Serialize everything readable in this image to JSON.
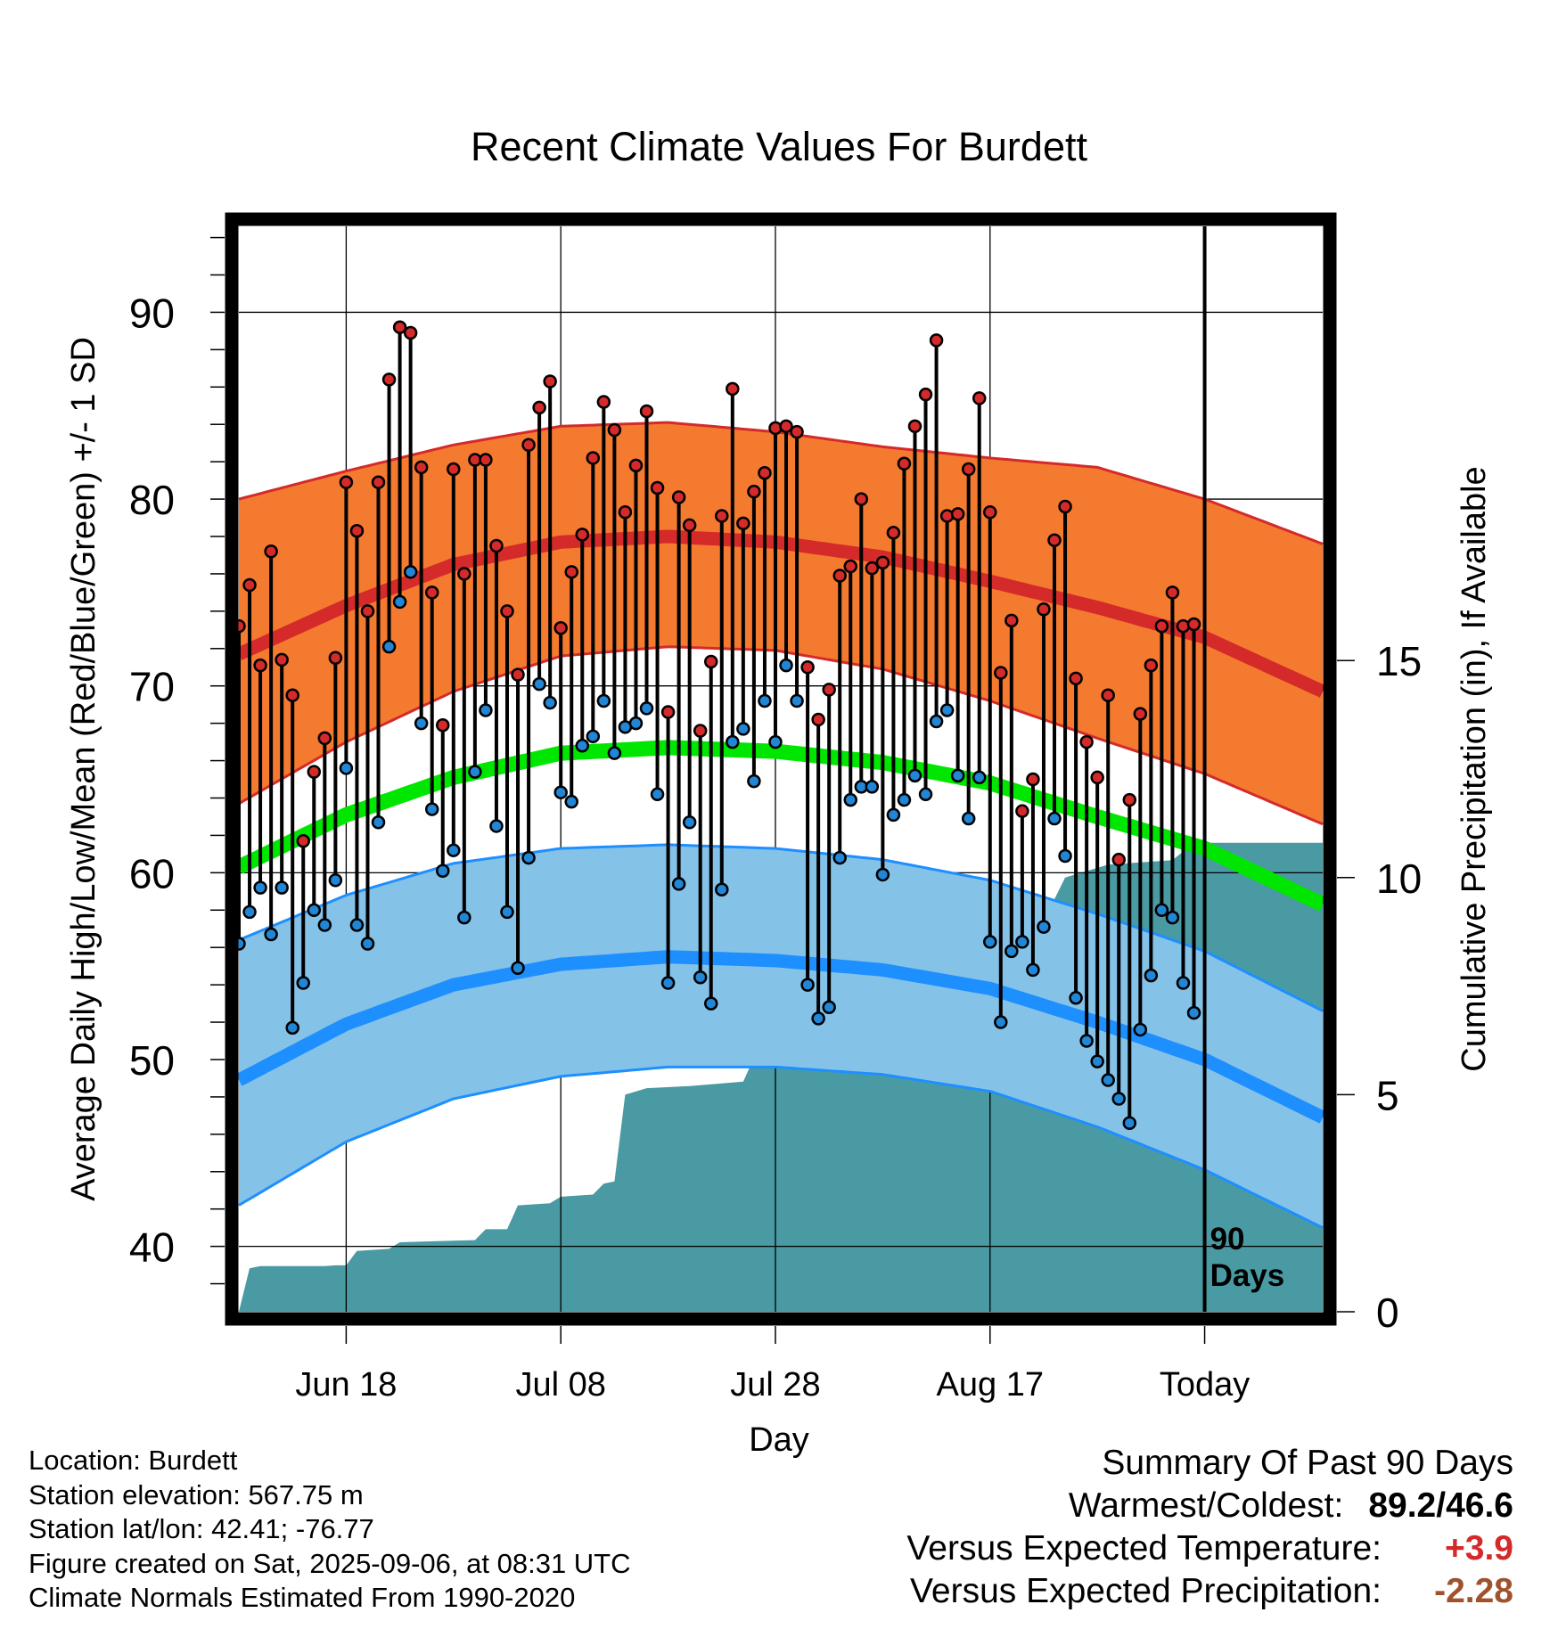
{
  "chart_data": {
    "type": "line",
    "title": "Recent Climate Values For Burdett",
    "xlabel": "Day",
    "ylabel": "Average Daily High/Low/Mean (Red/Blue/Green) +/- 1 SD",
    "y2label": "Cumulative Precipitation (in), If Available",
    "ylim": [
      36.5,
      94.6
    ],
    "y2lim": [
      0,
      25
    ],
    "yticks": [
      40,
      50,
      60,
      70,
      80,
      90
    ],
    "y2ticks": [
      0,
      5,
      10,
      15
    ],
    "x_start": "Jun 08",
    "x_range_days": [
      0,
      101
    ],
    "xticks": [
      {
        "day": 10,
        "label": "Jun 18"
      },
      {
        "day": 30,
        "label": "Jul 08"
      },
      {
        "day": 50,
        "label": "Jul 28"
      },
      {
        "day": 70,
        "label": "Aug 17"
      },
      {
        "day": 90,
        "label": "Today"
      }
    ],
    "today_day": 90,
    "today_annotation": [
      "90",
      "Days"
    ],
    "grid": true,
    "colors": {
      "high_band": "#f47a30",
      "high_mean": "#d42a2a",
      "low_band": "#85c2e8",
      "low_mean": "#1e8fff",
      "mean_line": "#00e600",
      "precip": "#4a9aa3",
      "high_point": "#d42a2a",
      "low_point": "#2186d6"
    },
    "normals_day": [
      0,
      10,
      20,
      30,
      40,
      50,
      60,
      70,
      80,
      90,
      101
    ],
    "normal_high_mean": [
      71.7,
      74.3,
      76.5,
      77.7,
      78.0,
      77.7,
      76.9,
      75.6,
      74.2,
      72.6,
      69.7
    ],
    "normal_high_upper": [
      80.0,
      81.5,
      82.9,
      83.9,
      84.1,
      83.6,
      82.8,
      82.2,
      81.7,
      80.0,
      77.6
    ],
    "normal_high_lower": [
      63.7,
      67.0,
      69.7,
      71.6,
      72.1,
      71.9,
      70.9,
      69.2,
      67.2,
      65.3,
      62.6
    ],
    "normal_low_mean": [
      48.9,
      51.9,
      54.0,
      55.1,
      55.5,
      55.3,
      54.8,
      53.8,
      52.0,
      50.0,
      46.9
    ],
    "normal_low_upper": [
      56.4,
      58.8,
      60.5,
      61.3,
      61.5,
      61.3,
      60.7,
      59.6,
      57.8,
      55.8,
      52.6
    ],
    "normal_low_lower": [
      42.2,
      45.6,
      47.9,
      49.1,
      49.6,
      49.6,
      49.2,
      48.3,
      46.4,
      44.1,
      41.0
    ],
    "normal_mean": [
      60.3,
      63.1,
      65.1,
      66.4,
      66.7,
      66.5,
      65.9,
      64.8,
      63.0,
      61.3,
      58.3
    ],
    "daily_high": [
      73.2,
      75.4,
      71.1,
      77.2,
      71.4,
      69.5,
      61.7,
      65.4,
      67.2,
      71.5,
      80.9,
      78.3,
      74.0,
      80.9,
      86.4,
      89.2,
      88.9,
      81.7,
      75.0,
      67.9,
      81.6,
      76.0,
      82.1,
      82.1,
      77.5,
      74.0,
      70.6,
      82.9,
      84.9,
      86.3,
      73.1,
      76.1,
      78.1,
      82.2,
      85.2,
      83.7,
      79.3,
      81.8,
      84.7,
      80.6,
      68.6,
      80.1,
      78.6,
      67.6,
      71.3,
      79.1,
      85.9,
      78.7,
      80.4,
      81.4,
      83.8,
      83.9,
      83.6,
      71.0,
      68.2,
      69.8,
      75.9,
      76.4,
      80.0,
      76.3,
      76.6,
      78.2,
      81.9,
      83.9,
      85.6,
      88.5,
      79.1,
      79.2,
      81.6,
      85.4,
      79.3,
      70.7,
      73.5,
      63.3,
      65.0,
      74.1,
      77.8,
      79.6,
      70.4,
      67.0,
      65.1,
      69.5,
      60.7,
      63.9,
      68.5,
      71.1,
      73.2,
      75.0,
      73.2,
      73.3
    ],
    "daily_low": [
      56.2,
      57.9,
      59.2,
      56.7,
      59.2,
      51.7,
      54.1,
      58.0,
      57.2,
      59.6,
      65.6,
      57.2,
      56.2,
      62.7,
      72.1,
      74.5,
      76.1,
      68.0,
      63.4,
      60.1,
      61.2,
      57.6,
      65.4,
      68.7,
      62.5,
      57.9,
      54.9,
      60.8,
      70.1,
      69.1,
      64.3,
      63.8,
      66.8,
      67.3,
      69.2,
      66.4,
      67.8,
      68.0,
      68.8,
      64.2,
      54.1,
      59.4,
      62.7,
      54.4,
      53.0,
      59.1,
      67.0,
      67.7,
      64.9,
      69.2,
      67.0,
      71.1,
      69.2,
      54.0,
      52.2,
      52.8,
      60.8,
      63.9,
      64.6,
      64.6,
      59.9,
      63.1,
      63.9,
      65.2,
      64.2,
      68.1,
      68.7,
      65.2,
      62.9,
      65.1,
      56.3,
      52.0,
      55.8,
      56.3,
      54.8,
      57.1,
      62.9,
      60.9,
      53.3,
      51.0,
      49.9,
      48.9,
      47.9,
      46.6,
      51.6,
      54.5,
      58.0,
      57.6,
      54.1,
      52.5
    ],
    "precip_steps": [
      [
        0,
        0.0
      ],
      [
        1,
        1.0
      ],
      [
        2,
        1.05
      ],
      [
        8,
        1.05
      ],
      [
        9,
        1.07
      ],
      [
        10,
        1.07
      ],
      [
        11,
        1.4
      ],
      [
        14,
        1.45
      ],
      [
        15,
        1.6
      ],
      [
        22,
        1.65
      ],
      [
        23,
        1.9
      ],
      [
        25,
        1.9
      ],
      [
        26,
        2.45
      ],
      [
        29,
        2.5
      ],
      [
        30,
        2.65
      ],
      [
        33,
        2.7
      ],
      [
        34,
        2.95
      ],
      [
        35,
        3.0
      ],
      [
        36,
        5.0
      ],
      [
        38,
        5.15
      ],
      [
        42,
        5.2
      ],
      [
        47,
        5.3
      ],
      [
        48,
        5.85
      ],
      [
        49,
        7.2
      ],
      [
        53,
        7.25
      ],
      [
        54,
        7.7
      ],
      [
        55,
        7.9
      ],
      [
        66,
        8.0
      ],
      [
        72,
        8.05
      ],
      [
        73,
        8.65
      ],
      [
        75,
        9.0
      ],
      [
        77,
        10.0
      ],
      [
        81,
        10.3
      ],
      [
        87,
        10.4
      ],
      [
        89,
        10.8
      ],
      [
        101,
        10.8
      ]
    ]
  },
  "footer": {
    "location": "Location: Burdett",
    "elevation": "Station elevation: 567.75 m",
    "latlon": "Station lat/lon: 42.41; -76.77",
    "created": "Figure created on Sat, 2025-09-06, at 08:31 UTC",
    "normals": "Climate Normals Estimated From 1990-2020"
  },
  "summary": {
    "heading": "Summary Of Past 90 Days",
    "warm_cold_label": "Warmest/Coldest:",
    "warmest": "89.2",
    "slash": "/",
    "coldest": "46.6",
    "temp_label": "Versus Expected Temperature:",
    "temp_value": "+3.9",
    "temp_color": "#d42a2a",
    "precip_label": "Versus Expected Precipitation:",
    "precip_value": "-2.28",
    "precip_color": "#a0522d"
  }
}
